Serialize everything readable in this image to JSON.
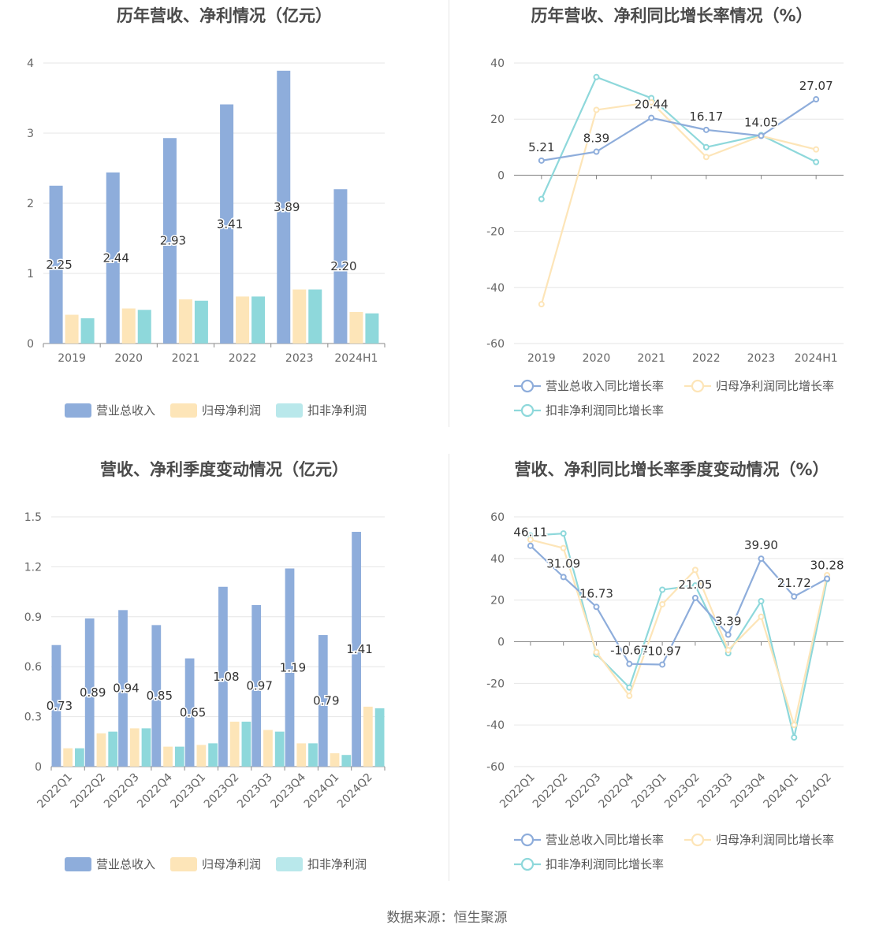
{
  "colors": {
    "revenue": "#8eaddb",
    "netprofit": "#fde5b8",
    "deducted": "#8ed8db"
  },
  "source": "数据来源：恒生聚源",
  "chart_data": [
    {
      "id": "annual-bar",
      "type": "bar",
      "title": "历年营收、净利情况（亿元）",
      "categories": [
        "2019",
        "2020",
        "2021",
        "2022",
        "2023",
        "2024H1"
      ],
      "ylim": [
        0,
        4
      ],
      "yticks": [
        "0",
        "1",
        "2",
        "3",
        "4"
      ],
      "grid": true,
      "legend": "bottom",
      "series": [
        {
          "name": "营业总收入",
          "values": [
            2.25,
            2.44,
            2.93,
            3.41,
            3.89,
            2.2
          ],
          "labels": [
            "2.25",
            "2.44",
            "2.93",
            "3.41",
            "3.89",
            "2.20"
          ]
        },
        {
          "name": "归母净利润",
          "values": [
            0.41,
            0.5,
            0.63,
            0.67,
            0.77,
            0.45
          ]
        },
        {
          "name": "扣非净利润",
          "values": [
            0.36,
            0.48,
            0.61,
            0.67,
            0.77,
            0.43
          ]
        }
      ]
    },
    {
      "id": "annual-line",
      "type": "line",
      "title": "历年营收、净利同比增长率情况（%）",
      "categories": [
        "2019",
        "2020",
        "2021",
        "2022",
        "2023",
        "2024H1"
      ],
      "ylim": [
        -60,
        40
      ],
      "yticks": [
        "-60",
        "-40",
        "-20",
        "0",
        "20",
        "40"
      ],
      "grid": true,
      "legend": "bottom",
      "series": [
        {
          "name": "营业总收入同比增长率",
          "values": [
            5.21,
            8.39,
            20.44,
            16.17,
            14.05,
            27.07
          ],
          "labels": [
            "5.21",
            "8.39",
            "20.44",
            "16.17",
            "14.05",
            "27.07"
          ]
        },
        {
          "name": "归母净利润同比增长率",
          "values": [
            -46.0,
            23.3,
            26.0,
            6.5,
            14.0,
            9.2
          ]
        },
        {
          "name": "扣非净利润同比增长率",
          "values": [
            -8.5,
            35.0,
            27.5,
            10.0,
            14.3,
            4.7
          ]
        }
      ]
    },
    {
      "id": "quarter-bar",
      "type": "bar",
      "title": "营收、净利季度变动情况（亿元）",
      "categories": [
        "2022Q1",
        "2022Q2",
        "2022Q3",
        "2022Q4",
        "2023Q1",
        "2023Q2",
        "2023Q3",
        "2023Q4",
        "2024Q1",
        "2024Q2"
      ],
      "ylim": [
        0,
        1.5
      ],
      "yticks": [
        "0",
        "0.3",
        "0.6",
        "0.9",
        "1.2",
        "1.5"
      ],
      "grid": true,
      "legend": "bottom",
      "series": [
        {
          "name": "营业总收入",
          "values": [
            0.73,
            0.89,
            0.94,
            0.85,
            0.65,
            1.08,
            0.97,
            1.19,
            0.79,
            1.41
          ],
          "labels": [
            "0.73",
            "0.89",
            "0.94",
            "0.85",
            "0.65",
            "1.08",
            "0.97",
            "1.19",
            "0.79",
            "1.41"
          ]
        },
        {
          "name": "归母净利润",
          "values": [
            0.11,
            0.2,
            0.23,
            0.12,
            0.13,
            0.27,
            0.22,
            0.14,
            0.08,
            0.36
          ]
        },
        {
          "name": "扣非净利润",
          "values": [
            0.11,
            0.21,
            0.23,
            0.12,
            0.14,
            0.27,
            0.21,
            0.14,
            0.07,
            0.35
          ]
        }
      ]
    },
    {
      "id": "quarter-line",
      "type": "line",
      "title": "营收、净利同比增长率季度变动情况（%）",
      "categories": [
        "2022Q1",
        "2022Q2",
        "2022Q3",
        "2022Q4",
        "2023Q1",
        "2023Q2",
        "2023Q3",
        "2023Q4",
        "2024Q1",
        "2024Q2"
      ],
      "ylim": [
        -60,
        60
      ],
      "yticks": [
        "-60",
        "-40",
        "-20",
        "0",
        "20",
        "40",
        "60"
      ],
      "grid": true,
      "legend": "bottom",
      "series": [
        {
          "name": "营业总收入同比增长率",
          "values": [
            46.11,
            31.09,
            16.73,
            -10.67,
            -10.97,
            21.05,
            3.39,
            39.9,
            21.72,
            30.28
          ],
          "labels": [
            "46.11",
            "31.09",
            "16.73",
            "-10.67",
            "-10.97",
            "21.05",
            "3.39",
            "39.90",
            "21.72",
            "30.28"
          ]
        },
        {
          "name": "归母净利润同比增长率",
          "values": [
            49.0,
            45.0,
            -5.0,
            -26.0,
            18.0,
            34.5,
            -4.0,
            12.0,
            -40.0,
            32.0
          ]
        },
        {
          "name": "扣非净利润同比增长率",
          "values": [
            51.0,
            52.0,
            -6.0,
            -22.0,
            25.0,
            27.0,
            -5.5,
            19.5,
            -46.0,
            30.0
          ]
        }
      ]
    }
  ]
}
